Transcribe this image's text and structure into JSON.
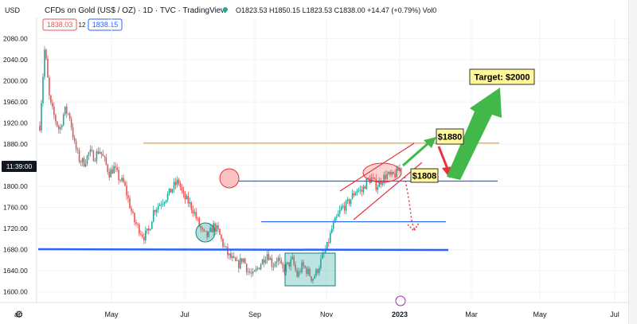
{
  "header": {
    "currency": "USD",
    "title": "CFDs on Gold (US$ / OZ) · 1D · TVC · TradingView",
    "ohlc": "O1823.53 H1850.15 L1823.53 C1838.00 +14.47 (+0.79%) Vol0",
    "bid": "1838.03",
    "spread": "12",
    "ask": "1838.15"
  },
  "colors": {
    "up": "#26a69a",
    "down": "#ef5350",
    "orange_line": "#f5a623",
    "blue_line": "#2962ff",
    "target_fill": "#fff79a",
    "green_arrow": "#43b84a",
    "red_arrow": "#e8323c"
  },
  "chart_data": {
    "type": "candlestick",
    "symbol": "CFDs on Gold (US$ / OZ)",
    "interval": "1D",
    "ylim": [
      1580,
      2120
    ],
    "y_ticks": [
      "2080.00",
      "2040.00",
      "2000.00",
      "1960.00",
      "1920.00",
      "1880.00",
      "1840.00",
      "1800.00",
      "1760.00",
      "1720.00",
      "1680.00",
      "1640.00",
      "1600.00"
    ],
    "x_ticks": [
      "ar",
      "May",
      "Jul",
      "Sep",
      "Nov",
      "2023",
      "Mar",
      "May",
      "Jul"
    ],
    "current_time_label": "11:39:00",
    "current_price": 1838,
    "closes_keypoints": [
      1915,
      2065,
      1960,
      1930,
      1905,
      1945,
      1935,
      1880,
      1850,
      1845,
      1865,
      1855,
      1870,
      1850,
      1825,
      1835,
      1815,
      1805,
      1770,
      1735,
      1720,
      1705,
      1715,
      1755,
      1765,
      1775,
      1785,
      1800,
      1810,
      1780,
      1770,
      1755,
      1730,
      1710,
      1705,
      1725,
      1715,
      1690,
      1670,
      1660,
      1650,
      1665,
      1640,
      1630,
      1645,
      1660,
      1675,
      1650,
      1665,
      1640,
      1650,
      1660,
      1630,
      1650,
      1640,
      1625,
      1640,
      1665,
      1685,
      1720,
      1740,
      1760,
      1765,
      1780,
      1795,
      1790,
      1810,
      1815,
      1800,
      1812,
      1822,
      1818,
      1825,
      1838
    ],
    "horizontal_levels": [
      {
        "value": 1882,
        "color": "orange"
      },
      {
        "value": 1810,
        "color": "blue"
      },
      {
        "value": 1733,
        "color": "blue"
      },
      {
        "value": 1681,
        "color": "blue"
      }
    ],
    "annotations": [
      "Target: $2000",
      "$1880",
      "$1808"
    ]
  }
}
